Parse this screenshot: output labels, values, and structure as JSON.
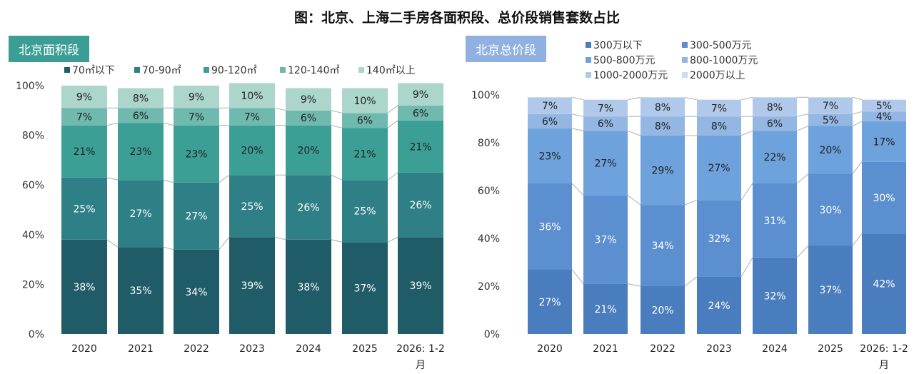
{
  "title": "图：北京、上海二手房各面积段、总价段销售套数占比",
  "chart_data": [
    {
      "type": "bar",
      "stacked": true,
      "tag": "北京面积段",
      "categories": [
        "2020",
        "2021",
        "2022",
        "2023",
        "2024",
        "2025",
        "2026: 1-2月"
      ],
      "yticks": [
        "0%",
        "20%",
        "40%",
        "60%",
        "80%",
        "100%"
      ],
      "ylim": [
        0,
        100
      ],
      "legend": "top",
      "series": [
        {
          "name": "70㎡以下",
          "color": "#1f5c68",
          "values": [
            38,
            35,
            34,
            39,
            38,
            37,
            39
          ]
        },
        {
          "name": "70-90㎡",
          "color": "#2f7f86",
          "values": [
            25,
            27,
            27,
            25,
            26,
            25,
            26
          ]
        },
        {
          "name": "90-120㎡",
          "color": "#3c9f95",
          "values": [
            21,
            23,
            23,
            20,
            20,
            21,
            21
          ]
        },
        {
          "name": "120-140㎡",
          "color": "#6fb9ae",
          "values": [
            7,
            6,
            7,
            7,
            6,
            6,
            6
          ]
        },
        {
          "name": "140㎡以上",
          "color": "#acd5cc",
          "values": [
            9,
            8,
            9,
            10,
            9,
            10,
            9
          ]
        }
      ]
    },
    {
      "type": "bar",
      "stacked": true,
      "tag": "北京总价段",
      "categories": [
        "2020",
        "2021",
        "2022",
        "2023",
        "2024",
        "2025",
        "2026: 1-2月"
      ],
      "yticks": [
        "0%",
        "20%",
        "40%",
        "60%",
        "80%",
        "100%"
      ],
      "ylim": [
        0,
        100
      ],
      "legend": "top",
      "series": [
        {
          "name": "300万以下",
          "color": "#4a7dbd",
          "values": [
            27,
            21,
            20,
            24,
            32,
            37,
            42
          ]
        },
        {
          "name": "300-500万元",
          "color": "#5b8fd0",
          "values": [
            36,
            37,
            34,
            32,
            31,
            30,
            30
          ]
        },
        {
          "name": "500-800万元",
          "color": "#6da2dc",
          "values": [
            23,
            27,
            29,
            27,
            22,
            20,
            17
          ]
        },
        {
          "name": "800-1000万元",
          "color": "#93b6e2",
          "values": [
            6,
            6,
            8,
            8,
            6,
            5,
            4
          ]
        },
        {
          "name": "1000-2000万元",
          "color": "#b0c9ea",
          "values": [
            7,
            7,
            8,
            7,
            8,
            7,
            5
          ]
        },
        {
          "name": "2000万以上",
          "color": "#cddcf1",
          "values": [
            null,
            null,
            null,
            null,
            null,
            null,
            null
          ]
        }
      ]
    }
  ]
}
